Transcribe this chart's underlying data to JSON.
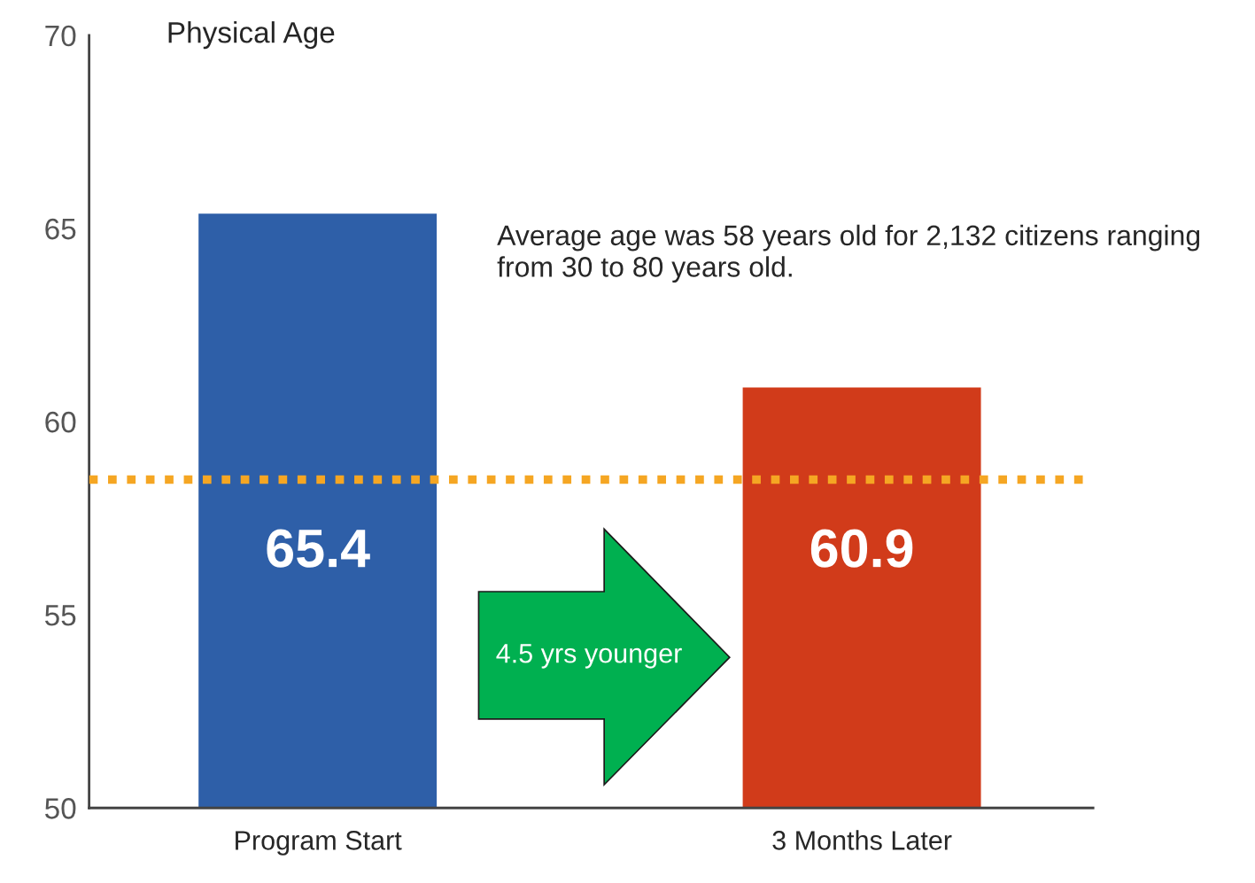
{
  "chart_data": {
    "type": "bar",
    "title": "Physical Age",
    "categories": [
      "Program Start",
      "3 Months Later"
    ],
    "values": [
      65.4,
      60.9
    ],
    "colors": [
      "#2e5fa8",
      "#d13b1a"
    ],
    "data_labels": true,
    "ylim": [
      50,
      70
    ],
    "yticks": [
      50,
      55,
      60,
      65,
      70
    ],
    "grid": false,
    "ref_lines": [
      {
        "axis": "y",
        "value": 58.5,
        "color": "#f5a623",
        "line_style": "dotted"
      }
    ],
    "annotations": [
      "Average age was 58 years old for 2,132 citizens ranging from 30 to 80 years old.",
      "4.5 yrs younger"
    ]
  }
}
